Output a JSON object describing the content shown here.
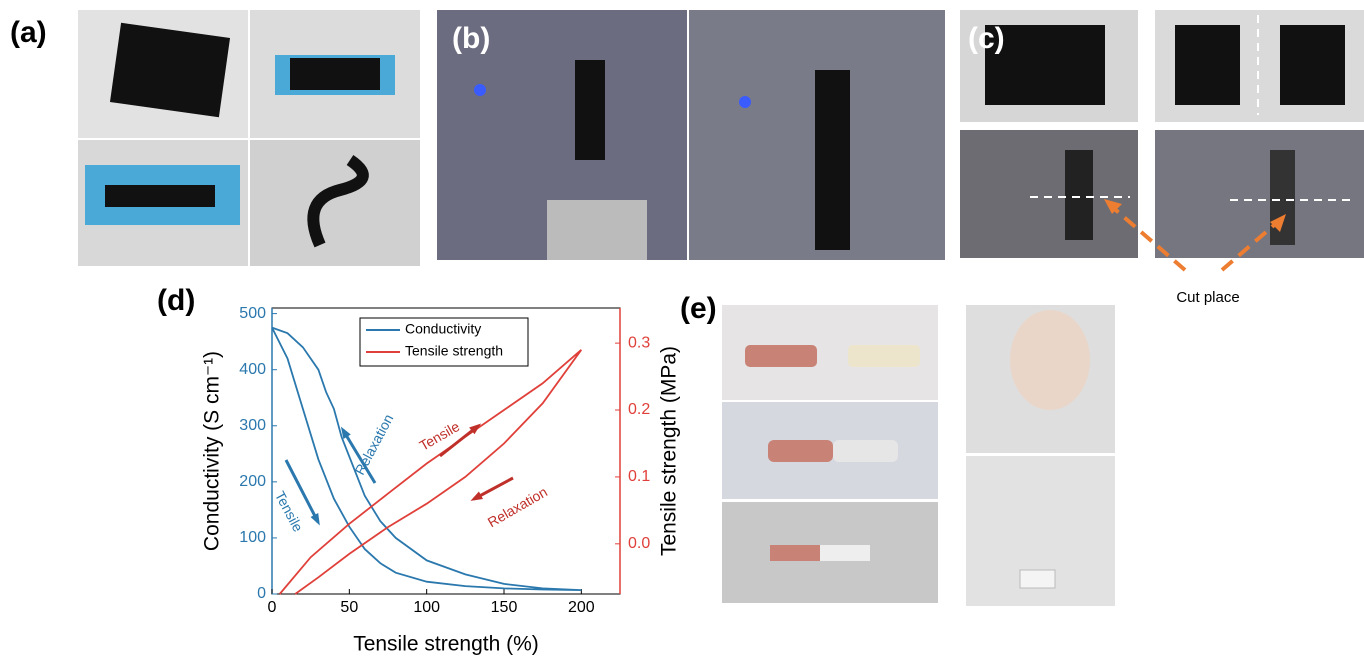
{
  "panel_labels": [
    "(a)",
    "(b)",
    "(c)",
    "(d)",
    "(e)"
  ],
  "cut_label": "Cut place",
  "chart_data": {
    "type": "line",
    "xlabel": "Tensile strength (%)",
    "ylabel": "Conductivity (S cm⁻¹)",
    "y2label": "Tensile strength (MPa)",
    "xlim": [
      0,
      225
    ],
    "ylim": [
      0,
      510
    ],
    "y2lim": [
      -0.075,
      0.3525
    ],
    "xticks": [
      0,
      50,
      100,
      150,
      200
    ],
    "yticks": [
      0,
      100,
      200,
      300,
      400,
      500
    ],
    "y2ticks": [
      {
        "value": 0,
        "label": "0.0"
      },
      0.1,
      0.2,
      0.3
    ],
    "legend": "top",
    "series": [
      {
        "name": "Conductivity",
        "color": "#2a78ad",
        "axis": "y",
        "x": [
          0,
          10,
          20,
          30,
          40,
          50,
          60,
          70,
          80,
          100,
          125,
          150,
          175,
          200,
          175,
          150,
          125,
          100,
          80,
          70,
          60,
          50,
          45,
          40,
          35,
          30,
          20,
          10,
          0
        ],
        "values": [
          475,
          420,
          330,
          240,
          170,
          120,
          80,
          55,
          38,
          22,
          14,
          10,
          8,
          7,
          10,
          18,
          35,
          60,
          100,
          130,
          175,
          245,
          280,
          330,
          360,
          400,
          440,
          465,
          475
        ]
      },
      {
        "name": "Tensile strength",
        "color": "#e0403a",
        "axis": "y2",
        "x": [
          5,
          25,
          50,
          75,
          100,
          125,
          150,
          175,
          200,
          175,
          150,
          125,
          100,
          75,
          50,
          30,
          15
        ],
        "values": [
          -0.075,
          -0.02,
          0.03,
          0.075,
          0.12,
          0.16,
          0.2,
          0.24,
          0.29,
          0.21,
          0.15,
          0.1,
          0.06,
          0.025,
          -0.015,
          -0.05,
          -0.075
        ]
      }
    ],
    "annotations": [
      {
        "text": "Tensile",
        "color": "#2a78ad"
      },
      {
        "text": "Relaxation",
        "color": "#2a78ad"
      },
      {
        "text": "Tensile",
        "color": "#c0302a"
      },
      {
        "text": "Relaxation",
        "color": "#c0302a"
      }
    ]
  }
}
